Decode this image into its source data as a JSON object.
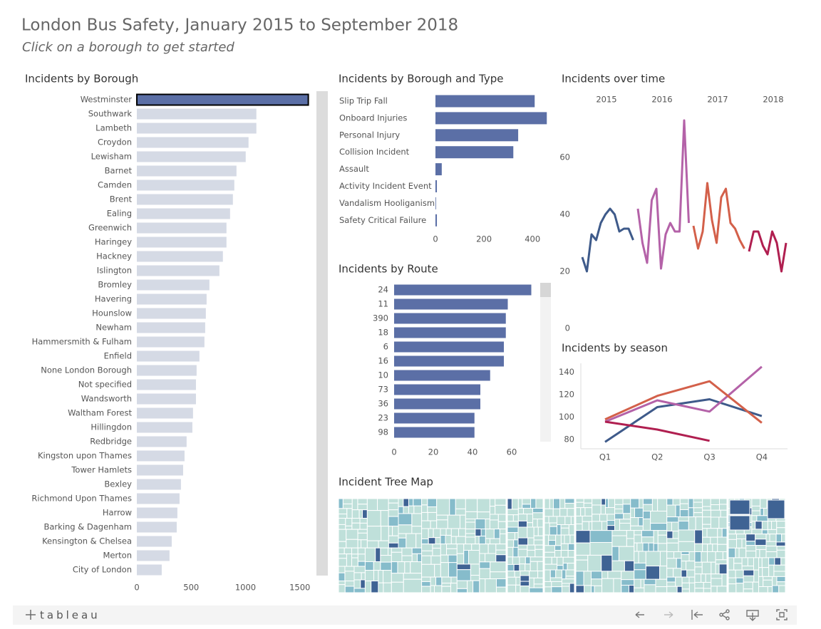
{
  "title": "London Bus Safety, January 2015 to September 2018",
  "subtitle": "Click on a borough to get started",
  "footer": {
    "brand": "tableau"
  },
  "chart_data": [
    {
      "type": "bar",
      "orientation": "horizontal",
      "title": "Incidents by Borough",
      "categories": [
        "Westminster",
        "Southwark",
        "Lambeth",
        "Croydon",
        "Lewisham",
        "Barnet",
        "Camden",
        "Brent",
        "Ealing",
        "Greenwich",
        "Haringey",
        "Hackney",
        "Islington",
        "Bromley",
        "Havering",
        "Hounslow",
        "Newham",
        "Hammersmith & Fulham",
        "Enfield",
        "None London Borough",
        "Not specified",
        "Wandsworth",
        "Waltham Forest",
        "Hillingdon",
        "Redbridge",
        "Kingston upon Thames",
        "Tower Hamlets",
        "Bexley",
        "Richmond Upon Thames",
        "Harrow",
        "Barking & Dagenham",
        "Kensington & Chelsea",
        "Merton",
        "City of London"
      ],
      "values": [
        1578,
        1100,
        1100,
        1028,
        1002,
        917,
        897,
        884,
        858,
        825,
        825,
        792,
        760,
        668,
        642,
        635,
        629,
        622,
        576,
        550,
        544,
        544,
        517,
        511,
        458,
        439,
        426,
        406,
        393,
        373,
        367,
        321,
        301,
        229
      ],
      "color": "#d5dae5",
      "selected": "Westminster",
      "selected_color": "#5b6fa6",
      "xlim": [
        0,
        1620
      ],
      "xticks": [
        0,
        500,
        1000,
        1500
      ]
    },
    {
      "type": "bar",
      "orientation": "horizontal",
      "title": "Incidents by Borough and Type",
      "categories": [
        "Slip Trip Fall",
        "Onboard Injuries",
        "Personal Injury",
        "Collision Incident",
        "Assault",
        "Activity Incident Event",
        "Vandalism Hooliganism",
        "Safety Critical Failure"
      ],
      "values": [
        409,
        459,
        341,
        321,
        26,
        6,
        1,
        6
      ],
      "color": "#5b6fa6",
      "xlim": [
        0,
        470
      ],
      "xticks": [
        0,
        200,
        400
      ]
    },
    {
      "type": "bar",
      "orientation": "horizontal",
      "title": "Incidents by Route",
      "categories": [
        "24",
        "11",
        "390",
        "18",
        "6",
        "16",
        "10",
        "73",
        "36",
        "23",
        "98"
      ],
      "values": [
        70,
        58,
        57,
        57,
        56,
        56,
        49,
        44,
        44,
        41,
        41
      ],
      "color": "#5b6fa6",
      "xlim": [
        0,
        74
      ],
      "xticks": [
        0,
        20,
        40,
        60
      ]
    },
    {
      "type": "line",
      "title": "Incidents over time",
      "series": [
        {
          "name": "2015",
          "color": "#3e5a8a",
          "values": [
            25,
            20,
            33,
            31,
            37,
            40,
            42,
            40,
            34,
            35,
            35,
            31
          ]
        },
        {
          "name": "2016",
          "color": "#b462a8",
          "values": [
            42,
            30,
            23,
            45,
            49,
            21,
            33,
            37,
            34,
            34,
            73,
            37
          ]
        },
        {
          "name": "2017",
          "color": "#d3604a",
          "values": [
            36,
            28,
            34,
            51,
            38,
            30,
            46,
            49,
            37,
            35,
            31,
            28
          ]
        },
        {
          "name": "2018",
          "color": "#b01f50",
          "values": [
            27,
            34,
            34,
            29,
            26,
            34,
            30,
            20,
            30
          ]
        }
      ],
      "ylim": [
        0,
        75
      ],
      "yticks": [
        0,
        20,
        40,
        60
      ]
    },
    {
      "type": "line",
      "title": "Incidents by season",
      "categories": [
        "Q1",
        "Q2",
        "Q3",
        "Q4"
      ],
      "series": [
        {
          "color": "#3e5a8a",
          "values": [
            78,
            109,
            116,
            101
          ]
        },
        {
          "color": "#b462a8",
          "values": [
            96,
            115,
            105,
            145
          ]
        },
        {
          "color": "#d3604a",
          "values": [
            98,
            119,
            132,
            95
          ]
        },
        {
          "color": "#b01f50",
          "values": [
            96,
            89,
            79,
            null
          ]
        }
      ],
      "ylim": [
        70,
        148
      ],
      "yticks": [
        80,
        100,
        120,
        140
      ]
    },
    {
      "type": "treemap",
      "title": "Incident Tree Map"
    }
  ]
}
